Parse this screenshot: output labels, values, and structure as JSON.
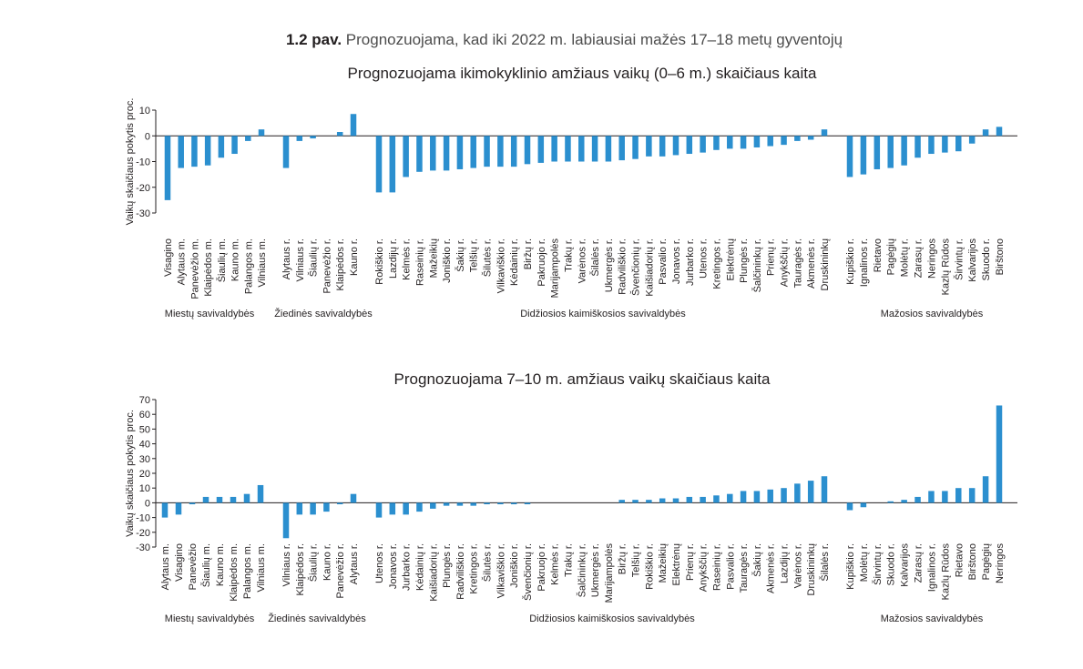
{
  "caption": {
    "label": "1.2 pav.",
    "text": "Prognozuojama, kad iki 2022 m. labiausiai mažės 17–18 metų gyventojų"
  },
  "colors": {
    "bar": "#2b8fcf",
    "axis": "#231f20"
  },
  "chart_data": [
    {
      "type": "bar",
      "title": "Prognozuojama ikimokyklinio amžiaus vaikų (0–6 m.) skaičiaus kaita",
      "ylabel": "Vaikų skaičiaus pokytis proc.",
      "ylim": [
        -30,
        10
      ],
      "yticks": [
        10,
        0,
        -10,
        -20,
        -30
      ],
      "groups": [
        {
          "name": "Miestų savivaldybės",
          "categories": [
            "Visagino",
            "Alytaus m.",
            "Panevėžio m.",
            "Klaipėdos m.",
            "Šiaulių m.",
            "Kauno m.",
            "Palangos m.",
            "Vilniaus m."
          ],
          "values": [
            -25,
            -12.5,
            -12,
            -11.5,
            -8.5,
            -7,
            -2,
            2.5
          ]
        },
        {
          "name": "Žiedinės savivaldybės",
          "categories": [
            "Alytaus r.",
            "Vilniaus r.",
            "Šiaulių r.",
            "Panevėžio r.",
            "Klaipėdos r.",
            "Kauno r."
          ],
          "values": [
            -12.5,
            -2,
            -1,
            0,
            1.5,
            8.5
          ]
        },
        {
          "name": "Didžiosios kaimiškosios savivaldybės",
          "categories": [
            "Rokiškio r.",
            "Lazdijų r.",
            "Kelmės r.",
            "Raseinių r.",
            "Mažeikių",
            "Joniškio r.",
            "Šakių r.",
            "Telšių r.",
            "Šilutės r.",
            "Vilkaviškio r.",
            "Kėdainių r.",
            "Biržų r.",
            "Pakruojo r.",
            "Marijampolės",
            "Trakų r.",
            "Varėnos r.",
            "Šilalės r.",
            "Ukmergės r.",
            "Radviliškio r.",
            "Švenčionių r.",
            "Kaišiadorių r.",
            "Pasvalio r.",
            "Jonavos r.",
            "Jurbarko r.",
            "Utenos r.",
            "Kretingos r.",
            "Elektrėnų",
            "Plungės r.",
            "Šalčininkų r.",
            "Prienų r.",
            "Anykščių r.",
            "Tauragės r.",
            "Akmenės r.",
            "Druskininkų"
          ],
          "values": [
            -22,
            -22,
            -16,
            -14,
            -13.5,
            -13.5,
            -13,
            -12.5,
            -12,
            -12,
            -12,
            -11,
            -10.5,
            -10,
            -10,
            -10,
            -10,
            -10,
            -9.5,
            -9,
            -8,
            -8,
            -7.5,
            -7,
            -6.5,
            -5.5,
            -5,
            -5,
            -4.5,
            -4,
            -3.5,
            -2,
            -1.5,
            2.5
          ]
        },
        {
          "name": "Mažosios savivaldybės",
          "categories": [
            "Kupiškio r.",
            "Ignalinos r.",
            "Rietavo",
            "Pagėgių",
            "Molėtų r.",
            "Zarasų r.",
            "Neringos",
            "Kazlų Rūdos",
            "Širvintų r.",
            "Kalvarijos",
            "Skuodo r.",
            "Birštono"
          ],
          "values": [
            -16,
            -15,
            -13,
            -12.5,
            -11.5,
            -8.5,
            -7,
            -6.5,
            -6,
            -3,
            2.5,
            3.5
          ]
        }
      ]
    },
    {
      "type": "bar",
      "title": "Prognozuojama 7–10 m. amžiaus vaikų skaičiaus kaita",
      "ylabel": "Vaikų skaičiaus pokytis proc.",
      "ylim": [
        -30,
        70
      ],
      "yticks": [
        70,
        60,
        50,
        40,
        30,
        20,
        10,
        0,
        -10,
        -20,
        -30
      ],
      "groups": [
        {
          "name": "Miestų savivaldybės",
          "categories": [
            "Alytaus m.",
            "Visagino",
            "Panevėžio",
            "Šiaulių m.",
            "Kauno m.",
            "Klaipėdos m.",
            "Palangos m.",
            "Vilniaus m."
          ],
          "values": [
            -10,
            -8,
            -1,
            4,
            4,
            4,
            6,
            12
          ]
        },
        {
          "name": "Žiedinės savivaldybės",
          "categories": [
            "Vilniaus r.",
            "Klaipėdos r.",
            "Šiaulių r.",
            "Kauno r.",
            "Panevėžio r.",
            "Alytaus r."
          ],
          "values": [
            -24,
            -8,
            -8,
            -6,
            -1,
            6
          ]
        },
        {
          "name": "Didžiosios kaimiškosios savivaldybės",
          "categories": [
            "Utenos r.",
            "Jonavos r.",
            "Jurbarko r.",
            "Kėdainių r.",
            "Kaišiadorių r.",
            "Plungės r.",
            "Radviliškio r.",
            "Kretingos r.",
            "Šilutės r.",
            "Vilkaviškio r.",
            "Joniškio r.",
            "Švenčionių r.",
            "Pakruojo r.",
            "Kelmės r.",
            "Trakų r.",
            "Šalčininkų r.",
            "Ukmergės r.",
            "Marijampolės",
            "Biržų r.",
            "Telšių r.",
            "Rokiškio r.",
            "Mažeikių",
            "Elektrėnų",
            "Prienų r.",
            "Anykščių r.",
            "Raseinių r.",
            "Pasvalio r.",
            "Tauragės r.",
            "Šakių r.",
            "Akmenės r.",
            "Lazdijų r.",
            "Varėnos r.",
            "Druskininkų",
            "Šilalės r."
          ],
          "values": [
            -10,
            -8,
            -8,
            -6,
            -4,
            -2,
            -2,
            -2,
            -1,
            -1,
            -1,
            -1,
            0,
            0,
            0,
            0,
            0,
            0,
            2,
            2,
            2,
            3,
            3,
            4,
            4,
            5,
            6,
            8,
            8,
            9,
            10,
            13,
            15,
            18
          ]
        },
        {
          "name": "Mažosios savivaldybės",
          "categories": [
            "Kupiškio r.",
            "Molėtų r.",
            "Širvintų r.",
            "Skuodo r.",
            "Kalvarijos",
            "Zarasų r.",
            "Ignalinos r.",
            "Kazlų Rūdos",
            "Rietavo",
            "Birštono",
            "Pagėgių",
            "Neringos"
          ],
          "values": [
            -5,
            -3,
            0,
            1,
            2,
            4,
            8,
            8,
            10,
            10,
            18,
            66
          ]
        }
      ]
    }
  ]
}
